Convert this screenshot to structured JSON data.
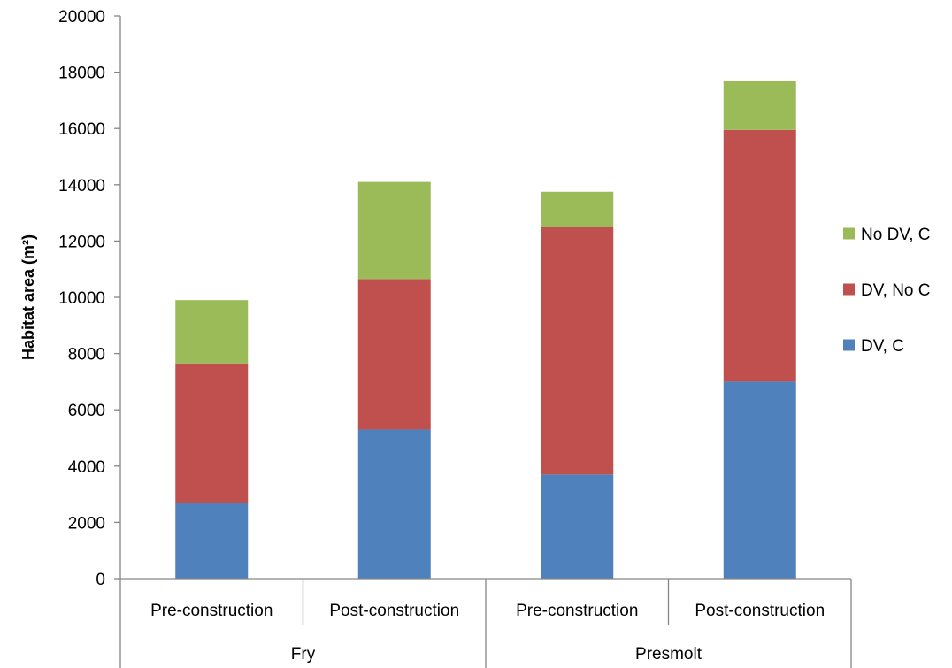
{
  "chart_data": {
    "type": "bar",
    "stacked": true,
    "ylabel": "Habitat area (m²)",
    "ylim": [
      0,
      20000
    ],
    "yticks": [
      0,
      2000,
      4000,
      6000,
      8000,
      10000,
      12000,
      14000,
      16000,
      18000,
      20000
    ],
    "groups": [
      {
        "label": "Fry",
        "categories": [
          "Pre-construction",
          "Post-construction"
        ]
      },
      {
        "label": "Presmolt",
        "categories": [
          "Pre-construction",
          "Post-construction"
        ]
      }
    ],
    "categories": [
      "Pre-construction",
      "Post-construction",
      "Pre-construction",
      "Post-construction"
    ],
    "series": [
      {
        "name": "DV, C",
        "color": "#4F81BD",
        "values": [
          2700,
          5300,
          3700,
          7000
        ]
      },
      {
        "name": "DV, No C",
        "color": "#C0504D",
        "values": [
          4950,
          5350,
          8800,
          8950
        ]
      },
      {
        "name": "No DV, C",
        "color": "#9BBB59",
        "values": [
          2250,
          3450,
          1250,
          1750
        ]
      }
    ],
    "legend_position": "right",
    "grid": false
  }
}
